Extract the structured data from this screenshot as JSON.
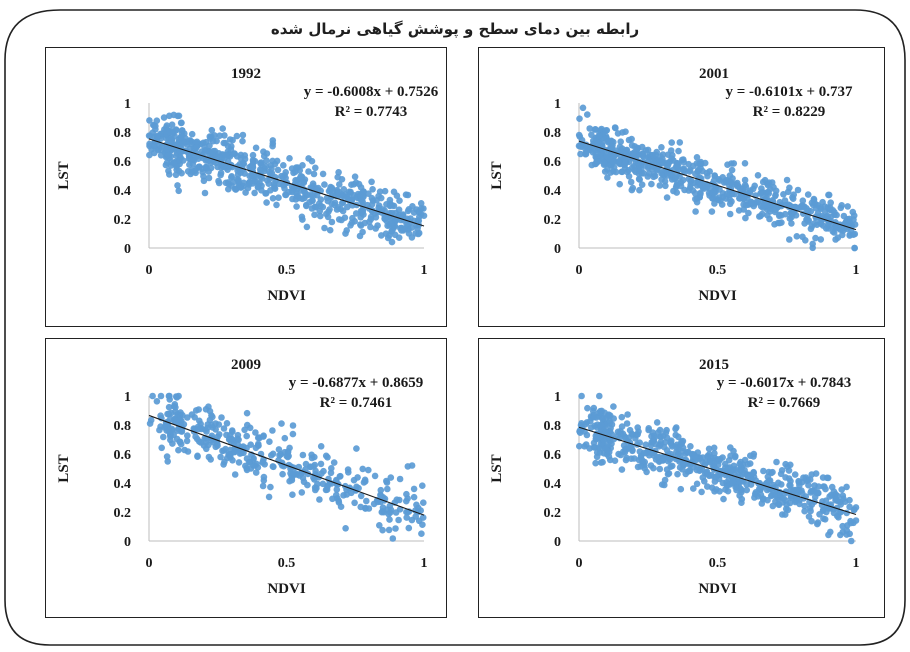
{
  "figure_title": "رابطه بین دمای سطح و پوشش گیاهی نرمال شده",
  "colors": {
    "points": "#5b9bd5",
    "trendline": "#1a1a1a",
    "border": "#222222"
  },
  "chart_data": [
    {
      "type": "scatter",
      "title": "1992",
      "xlabel": "NDVI",
      "ylabel": "LST",
      "xlim": [
        0,
        1
      ],
      "ylim": [
        0,
        1
      ],
      "xticks": [
        "0",
        "0.5",
        "1"
      ],
      "yticks": [
        "0",
        "0.2",
        "0.4",
        "0.6",
        "0.8",
        "1"
      ],
      "trendline": {
        "slope": -0.6008,
        "intercept": 0.7526
      },
      "equation": "y = -0.6008x + 0.7526",
      "r_squared": "R² = 0.7743",
      "point_count": 700,
      "noise": 0.09,
      "seed": 1992
    },
    {
      "type": "scatter",
      "title": "2001",
      "xlabel": "NDVI",
      "ylabel": "LST",
      "xlim": [
        0,
        1
      ],
      "ylim": [
        0,
        1
      ],
      "xticks": [
        "0",
        "0.5",
        "1"
      ],
      "yticks": [
        "0",
        "0.2",
        "0.4",
        "0.6",
        "0.8",
        "1"
      ],
      "trendline": {
        "slope": -0.6101,
        "intercept": 0.737
      },
      "equation": "y = -0.6101x + 0.737",
      "r_squared": "R² = 0.8229",
      "point_count": 700,
      "noise": 0.08,
      "seed": 2001
    },
    {
      "type": "scatter",
      "title": "2009",
      "xlabel": "NDVI",
      "ylabel": "LST",
      "xlim": [
        0,
        1
      ],
      "ylim": [
        0,
        1
      ],
      "xticks": [
        "0",
        "0.5",
        "1"
      ],
      "yticks": [
        "0",
        "0.2",
        "0.4",
        "0.6",
        "0.8",
        "1"
      ],
      "trendline": {
        "slope": -0.6877,
        "intercept": 0.8659
      },
      "equation": "y = -0.6877x + 0.8659",
      "r_squared": "R² = 0.7461",
      "point_count": 420,
      "noise": 0.1,
      "seed": 2009
    },
    {
      "type": "scatter",
      "title": "2015",
      "xlabel": "NDVI",
      "ylabel": "LST",
      "xlim": [
        0,
        1
      ],
      "ylim": [
        0,
        1
      ],
      "xticks": [
        "0",
        "0.5",
        "1"
      ],
      "yticks": [
        "0",
        "0.2",
        "0.4",
        "0.6",
        "0.8",
        "1"
      ],
      "trendline": {
        "slope": -0.6017,
        "intercept": 0.7843
      },
      "equation": "y = -0.6017x + 0.7843",
      "r_squared": "R² = 0.7669",
      "point_count": 650,
      "noise": 0.09,
      "seed": 2015
    }
  ]
}
